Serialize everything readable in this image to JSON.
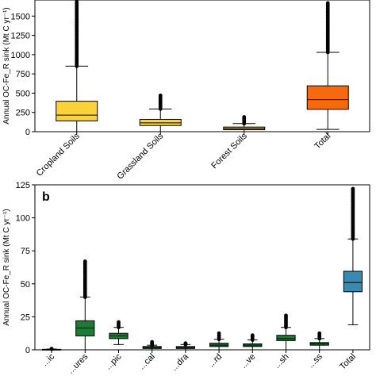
{
  "chart_data": [
    {
      "type": "box",
      "panel_label": "",
      "ylabel": "Annual OC-Fe_R sink (Mt C yr⁻¹)",
      "ylim": [
        0,
        1750
      ],
      "yticks": [
        0,
        250,
        500,
        750,
        1000,
        1250,
        1500,
        1750
      ],
      "categories": [
        "Cropland Soils",
        "Grassland Soils",
        "Forest Soils",
        "Total"
      ],
      "boxes": [
        {
          "q1": 140,
          "median": 215,
          "q3": 395,
          "whisker_low": 0,
          "whisker_high": 850,
          "outliers_max": 1730,
          "color": "#f9d23c"
        },
        {
          "q1": 80,
          "median": 115,
          "q3": 160,
          "whisker_low": 0,
          "whisker_high": 295,
          "outliers_max": 470,
          "color": "#f9d23c"
        },
        {
          "q1": 25,
          "median": 40,
          "q3": 60,
          "whisker_low": 0,
          "whisker_high": 105,
          "outliers_max": 190,
          "color": "#d9b64a"
        },
        {
          "q1": 290,
          "median": 415,
          "q3": 595,
          "whisker_low": 30,
          "whisker_high": 1030,
          "outliers_max": 1760,
          "color": "#f56a0f"
        }
      ],
      "grid": false
    },
    {
      "type": "box",
      "panel_label": "b",
      "ylabel": "Annual OC-Fe_R sink (Mt C yr⁻¹)",
      "ylim": [
        0,
        125
      ],
      "yticks": [
        0,
        25,
        50,
        75,
        100,
        125
      ],
      "categories": [
        "...ic",
        "...ures",
        "...pic",
        "...cal",
        "...dra",
        "...rd",
        "...ve",
        "...sh",
        "...ss",
        "Total"
      ],
      "boxes": [
        {
          "q1": 0,
          "median": 0.2,
          "q3": 0.4,
          "whisker_low": 0,
          "whisker_high": 0.6,
          "outliers_max": 0.8,
          "color": "#2e8b57"
        },
        {
          "q1": 10.5,
          "median": 16.5,
          "q3": 22,
          "whisker_low": 0,
          "whisker_high": 40,
          "outliers_max": 67,
          "color": "#1e7a37"
        },
        {
          "q1": 8.5,
          "median": 10.5,
          "q3": 12.5,
          "whisker_low": 4,
          "whisker_high": 17,
          "outliers_max": 21,
          "color": "#1e7a37"
        },
        {
          "q1": 1,
          "median": 1.8,
          "q3": 2.5,
          "whisker_low": 0,
          "whisker_high": 3.5,
          "outliers_max": 6,
          "color": "#1e7a37"
        },
        {
          "q1": 1,
          "median": 1.6,
          "q3": 2.5,
          "whisker_low": 0,
          "whisker_high": 4,
          "outliers_max": 5,
          "color": "#1e7a37"
        },
        {
          "q1": 2.5,
          "median": 3.5,
          "q3": 5,
          "whisker_low": 0,
          "whisker_high": 8,
          "outliers_max": 12.5,
          "color": "#1e7a37"
        },
        {
          "q1": 2.5,
          "median": 3.5,
          "q3": 4.5,
          "whisker_low": 0,
          "whisker_high": 7.5,
          "outliers_max": 11,
          "color": "#1e7a37"
        },
        {
          "q1": 7,
          "median": 8.5,
          "q3": 11,
          "whisker_low": 0,
          "whisker_high": 17,
          "outliers_max": 26,
          "color": "#1e7a37"
        },
        {
          "q1": 3.5,
          "median": 4.5,
          "q3": 5.5,
          "whisker_low": 0,
          "whisker_high": 8.5,
          "outliers_max": 12.5,
          "color": "#1e7a37"
        },
        {
          "q1": 44,
          "median": 51,
          "q3": 59.5,
          "whisker_low": 19,
          "whisker_high": 84,
          "outliers_max": 122,
          "color": "#3a89b0"
        }
      ],
      "grid": false
    }
  ]
}
